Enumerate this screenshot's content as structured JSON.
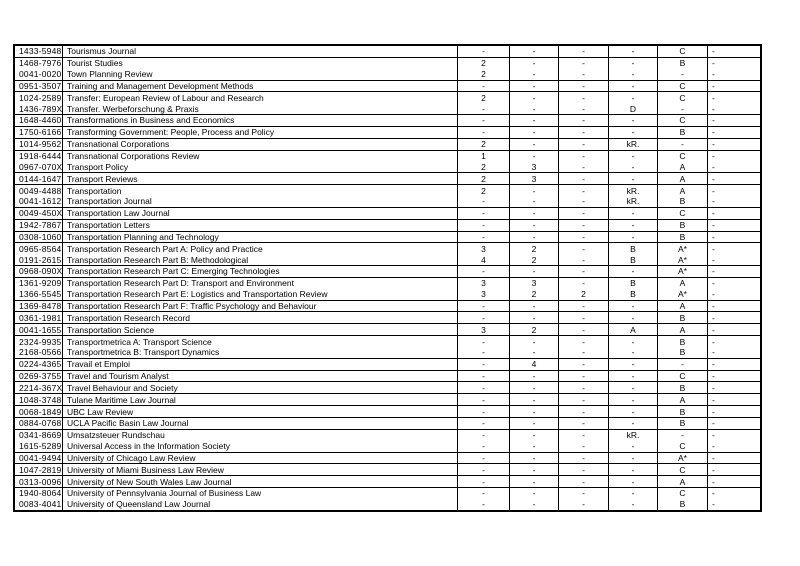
{
  "document": {
    "background": "#ffffff",
    "text_color": "#000000",
    "border_color": "#000000",
    "dash": "-",
    "no_rating_label": "kR."
  },
  "table": {
    "columns": [
      "issn",
      "journal_title",
      "rating_col_1",
      "rating_col_2",
      "rating_col_3",
      "rating_col_4",
      "rating_col_5",
      "rating_col_6"
    ],
    "rows": [
      {
        "issn": "1433-5948",
        "title": "Tourismus Journal",
        "values": [
          "-",
          "-",
          "-",
          "-",
          "C",
          "-"
        ],
        "divider_below": true
      },
      {
        "issn": "1468-7976",
        "title": "Tourist Studies",
        "values": [
          "2",
          "-",
          "-",
          "-",
          "B",
          "-"
        ],
        "divider_below": false
      },
      {
        "issn": "0041-0020",
        "title": "Town Planning Review",
        "values": [
          "2",
          "-",
          "-",
          "-",
          "-",
          "-"
        ],
        "divider_below": true
      },
      {
        "issn": "0951-3507",
        "title": "Training and Management Development Methods",
        "values": [
          "-",
          "-",
          "-",
          "-",
          "C",
          "-"
        ],
        "divider_below": true
      },
      {
        "issn": "1024-2589",
        "title": "Transfer: European Review of Labour and Research",
        "values": [
          "2",
          "-",
          "-",
          "-",
          "C",
          "-"
        ],
        "divider_below": false
      },
      {
        "issn": "1436-789X",
        "title": "Transfer. Werbeforschung & Praxis",
        "values": [
          "-",
          "-",
          "-",
          "D",
          "-",
          "-"
        ],
        "divider_below": true
      },
      {
        "issn": "1648-4460",
        "title": "Transformations in Business and Economics",
        "values": [
          "-",
          "-",
          "-",
          "-",
          "C",
          "-"
        ],
        "divider_below": true
      },
      {
        "issn": "1750-6166",
        "title": "Transforming Government: People, Process and Policy",
        "values": [
          "-",
          "-",
          "-",
          "-",
          "B",
          "-"
        ],
        "divider_below": true
      },
      {
        "issn": "1014-9562",
        "title": "Transnational Corporations",
        "values": [
          "2",
          "-",
          "-",
          "kR.",
          "-",
          "-"
        ],
        "divider_below": true
      },
      {
        "issn": "1918-6444",
        "title": "Transnational Corporations Review",
        "values": [
          "1",
          "-",
          "-",
          "-",
          "C",
          "-"
        ],
        "divider_below": false
      },
      {
        "issn": "0967-070X",
        "title": "Transport Policy",
        "values": [
          "2",
          "3",
          "-",
          "-",
          "A",
          "-"
        ],
        "divider_below": true
      },
      {
        "issn": "0144-1647",
        "title": "Transport Reviews",
        "values": [
          "2",
          "3",
          "-",
          "-",
          "A",
          "-"
        ],
        "divider_below": true
      },
      {
        "issn": "0049-4488",
        "title": "Transportation",
        "values": [
          "2",
          "-",
          "-",
          "kR.",
          "A",
          "-"
        ],
        "divider_below": false
      },
      {
        "issn": "0041-1612",
        "title": "Transportation Journal",
        "values": [
          "-",
          "-",
          "-",
          "kR.",
          "B",
          "-"
        ],
        "divider_below": true
      },
      {
        "issn": "0049-450X",
        "title": "Transportation Law Journal",
        "values": [
          "-",
          "-",
          "-",
          "-",
          "C",
          "-"
        ],
        "divider_below": true
      },
      {
        "issn": "1942-7867",
        "title": "Transportation Letters",
        "values": [
          "-",
          "-",
          "-",
          "-",
          "B",
          "-"
        ],
        "divider_below": true
      },
      {
        "issn": "0308-1060",
        "title": "Transportation Planning and Technology",
        "values": [
          "-",
          "-",
          "-",
          "-",
          "B",
          "-"
        ],
        "divider_below": true
      },
      {
        "issn": "0965-8564",
        "title": "Transportation Research Part A: Policy and Practice",
        "values": [
          "3",
          "2",
          "-",
          "B",
          "A*",
          "-"
        ],
        "divider_below": false
      },
      {
        "issn": "0191-2615",
        "title": "Transportation Research Part B: Methodological",
        "values": [
          "4",
          "2",
          "-",
          "B",
          "A*",
          "-"
        ],
        "divider_below": true
      },
      {
        "issn": "0968-090X",
        "title": "Transportation Research Part C: Emerging Technologies",
        "values": [
          "-",
          "-",
          "-",
          "-",
          "A*",
          "-"
        ],
        "divider_below": true
      },
      {
        "issn": "1361-9209",
        "title": "Transportation Research Part D: Transport and Environment",
        "values": [
          "3",
          "3",
          "-",
          "B",
          "A",
          "-"
        ],
        "divider_below": false
      },
      {
        "issn": "1366-5545",
        "title": "Transportation Research Part E: Logistics and Transportation Review",
        "values": [
          "3",
          "2",
          "2",
          "B",
          "A*",
          "-"
        ],
        "divider_below": true
      },
      {
        "issn": "1369-8478",
        "title": "Transportation Research Part F: Traffic Psychology and Behaviour",
        "values": [
          "-",
          "-",
          "-",
          "-",
          "A",
          "-"
        ],
        "divider_below": true
      },
      {
        "issn": "0361-1981",
        "title": "Transportation Research Record",
        "values": [
          "-",
          "-",
          "-",
          "-",
          "B",
          "-"
        ],
        "divider_below": true
      },
      {
        "issn": "0041-1655",
        "title": "Transportation Science",
        "values": [
          "3",
          "2",
          "-",
          "A",
          "A",
          "-"
        ],
        "divider_below": true
      },
      {
        "issn": "2324-9935",
        "title": "Transportmetrica A: Transport Science",
        "values": [
          "-",
          "-",
          "-",
          "-",
          "B",
          "-"
        ],
        "divider_below": false
      },
      {
        "issn": "2168-0566",
        "title": "Transportmetrica B: Transport Dynamics",
        "values": [
          "-",
          "-",
          "-",
          "-",
          "B",
          "-"
        ],
        "divider_below": true
      },
      {
        "issn": "0224-4365",
        "title": "Travail et Emploi",
        "values": [
          "-",
          "4",
          "-",
          "-",
          "-",
          "-"
        ],
        "divider_below": true
      },
      {
        "issn": "0269-3755",
        "title": "Travel and Tourism Analyst",
        "values": [
          "-",
          "-",
          "-",
          "-",
          "C",
          "-"
        ],
        "divider_below": true
      },
      {
        "issn": "2214-367X",
        "title": "Travel Behaviour and Society",
        "values": [
          "-",
          "-",
          "-",
          "-",
          "B",
          "-"
        ],
        "divider_below": true
      },
      {
        "issn": "1048-3748",
        "title": "Tulane Maritime Law Journal",
        "values": [
          "-",
          "-",
          "-",
          "-",
          "A",
          "-"
        ],
        "divider_below": true
      },
      {
        "issn": "0068-1849",
        "title": "UBC Law Review",
        "values": [
          "-",
          "-",
          "-",
          "-",
          "B",
          "-"
        ],
        "divider_below": true
      },
      {
        "issn": "0884-0768",
        "title": "UCLA Pacific Basin Law Journal",
        "values": [
          "-",
          "-",
          "-",
          "-",
          "B",
          "-"
        ],
        "divider_below": true
      },
      {
        "issn": "0341-8669",
        "title": "Umsatzsteuer Rundschau",
        "values": [
          "-",
          "-",
          "-",
          "kR.",
          "-",
          "-"
        ],
        "divider_below": false
      },
      {
        "issn": "1615-5289",
        "title": "Universal Access in the Information Society",
        "values": [
          "-",
          "-",
          "-",
          "-",
          "C",
          "-"
        ],
        "divider_below": true
      },
      {
        "issn": "0041-9494",
        "title": "University of Chicago Law Review",
        "values": [
          "-",
          "-",
          "-",
          "-",
          "A*",
          "-"
        ],
        "divider_below": true
      },
      {
        "issn": "1047-2819",
        "title": "University of Miami Business Law Review",
        "values": [
          "-",
          "-",
          "-",
          "-",
          "C",
          "-"
        ],
        "divider_below": true
      },
      {
        "issn": "0313-0096",
        "title": "University of New South Wales Law Journal",
        "values": [
          "-",
          "-",
          "-",
          "-",
          "A",
          "-"
        ],
        "divider_below": true
      },
      {
        "issn": "1940-8064",
        "title": "University of Pennsylvania Journal of Business Law",
        "values": [
          "-",
          "-",
          "-",
          "-",
          "C",
          "-"
        ],
        "divider_below": false
      },
      {
        "issn": "0083-4041",
        "title": "University of Queensland Law Journal",
        "values": [
          "-",
          "-",
          "-",
          "-",
          "B",
          "-"
        ],
        "divider_below": false
      }
    ]
  }
}
